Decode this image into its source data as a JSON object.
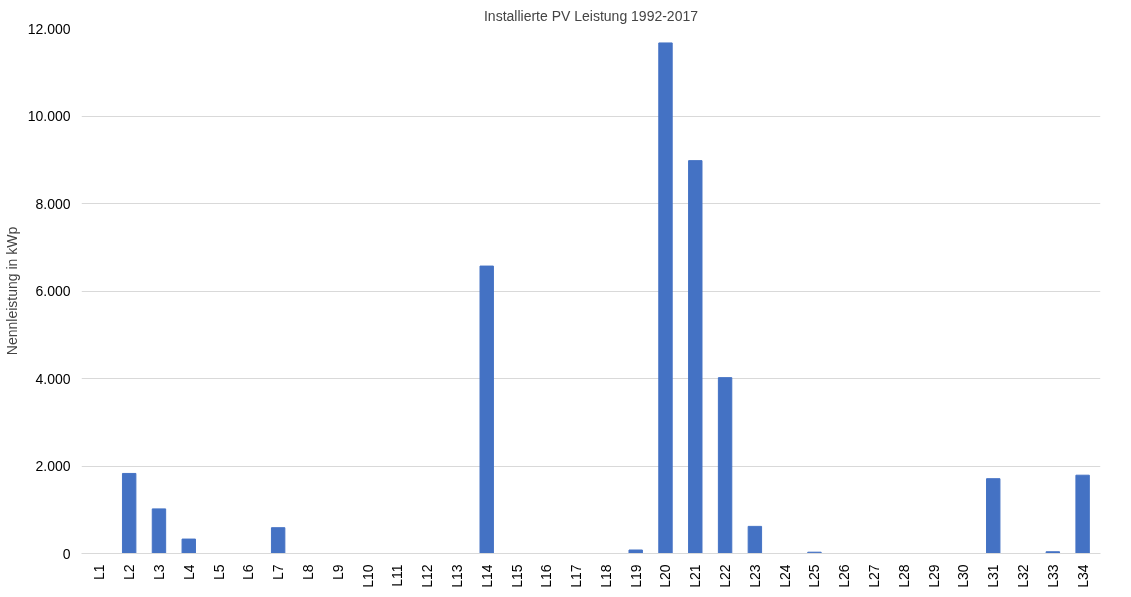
{
  "chart_data": {
    "type": "bar",
    "title": "Installierte PV Leistung 1992-2017",
    "ylabel": "Nennleistung in kWp",
    "categories": [
      "L1",
      "L2",
      "L3",
      "L4",
      "L5",
      "L6",
      "L7",
      "L8",
      "L9",
      "L10",
      "L11",
      "L12",
      "L13",
      "L14",
      "L15",
      "L16",
      "L17",
      "L18",
      "L19",
      "L20",
      "L21",
      "L22",
      "L23",
      "L24",
      "L25",
      "L26",
      "L27",
      "L28",
      "L29",
      "L30",
      "L31",
      "L32",
      "L33",
      "L34"
    ],
    "values": [
      0,
      1830,
      1020,
      330,
      0,
      0,
      590,
      0,
      0,
      0,
      0,
      0,
      0,
      6570,
      0,
      0,
      0,
      0,
      80,
      11670,
      8980,
      4020,
      620,
      0,
      30,
      0,
      0,
      0,
      0,
      0,
      1710,
      0,
      40,
      1790
    ],
    "color": "#4472c4",
    "ylim": [
      0,
      12000
    ],
    "yticks": [
      {
        "value": 0,
        "label": "0"
      },
      {
        "value": 2000,
        "label": "2.000"
      },
      {
        "value": 4000,
        "label": "4.000"
      },
      {
        "value": 6000,
        "label": "6.000"
      },
      {
        "value": 8000,
        "label": "8.000"
      },
      {
        "value": 10000,
        "label": "10.000"
      },
      {
        "value": 12000,
        "label": "12.000"
      }
    ],
    "grid": "y"
  }
}
